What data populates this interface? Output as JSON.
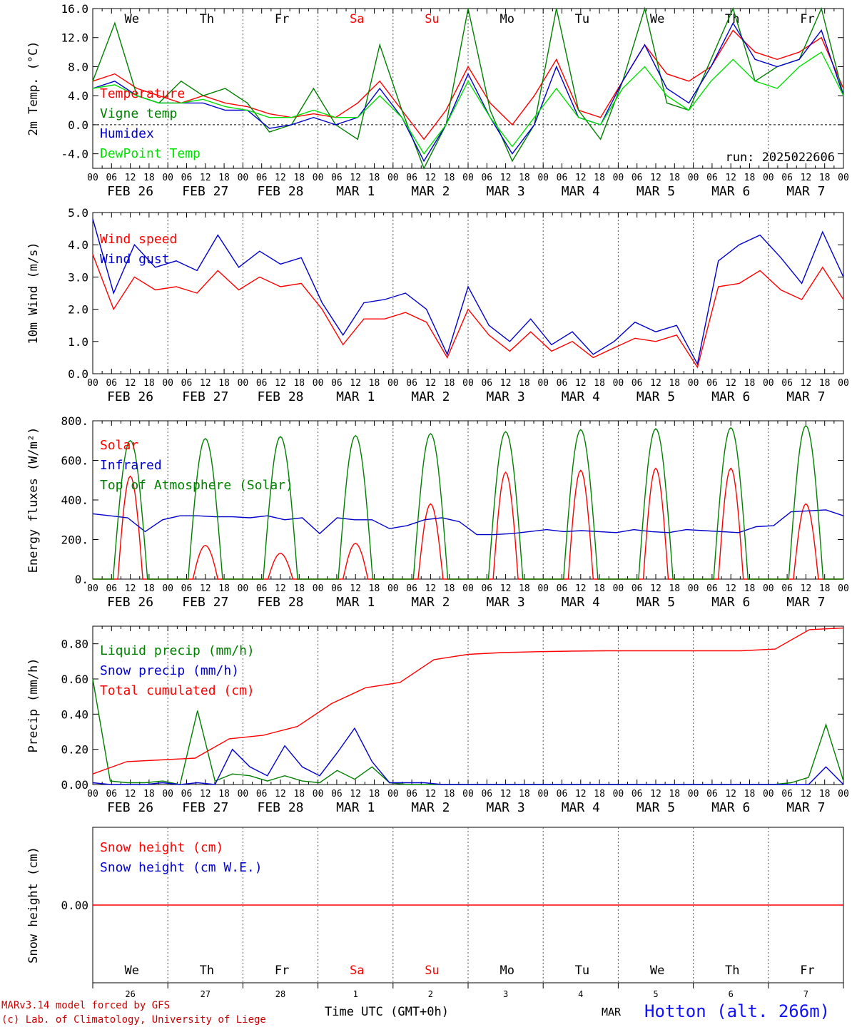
{
  "run_label": "run: 2025022606",
  "footer": {
    "model": "MARv3.14 model forced by GFS",
    "lab": "(c) Lab. of Climatology, University of Liege",
    "xlabel": "Time UTC (GMT+0h)",
    "month": "MAR",
    "station": "Hotton (alt. 266m)"
  },
  "days": [
    "We",
    "Th",
    "Fr",
    "Sa",
    "Su",
    "Mo",
    "Tu",
    "We",
    "Th",
    "Fr"
  ],
  "dates": [
    "FEB 26",
    "FEB 27",
    "FEB 28",
    "MAR  1",
    "MAR  2",
    "MAR  3",
    "MAR  4",
    "MAR  5",
    "MAR  6",
    "MAR  7"
  ],
  "day_nums": [
    "26",
    "27",
    "28",
    "1",
    "2",
    "3",
    "4",
    "5",
    "6",
    "7"
  ],
  "hour_labels": [
    "00",
    "06",
    "12",
    "18"
  ],
  "colors": {
    "weekend": "#ff0000",
    "red": "#ff0000",
    "green": "#008000",
    "blue": "#0000cc",
    "lightgreen": "#00e000"
  },
  "chart_data": [
    {
      "type": "line",
      "ylabel": "2m Temp. (°C)",
      "ylim": [
        -6,
        16
      ],
      "yticks": [
        "-4.0",
        "0.0",
        "4.0",
        "8.0",
        "12.0",
        "16.0"
      ],
      "ytick_values": [
        -4,
        0,
        4,
        8,
        12,
        16
      ],
      "zero_line": true,
      "x_hours_step": 12,
      "series": [
        {
          "name": "Temperature",
          "color": "#ff0000",
          "values": [
            6,
            7,
            5,
            4,
            3,
            4,
            3,
            2.5,
            1.5,
            1,
            1.5,
            1,
            3,
            6,
            2,
            -2,
            2,
            8,
            3,
            0,
            4,
            9,
            2,
            1,
            6,
            11,
            7,
            6,
            8,
            13,
            10,
            9,
            10,
            12,
            5
          ]
        },
        {
          "name": "Vigne temp",
          "color": "#008000",
          "values": [
            6,
            14,
            4,
            3,
            6,
            4,
            5,
            3,
            -1,
            0,
            5,
            0,
            -2,
            11,
            2,
            -6,
            0,
            16,
            2,
            -5,
            0,
            16,
            2,
            -2,
            6,
            16,
            3,
            2,
            9,
            18,
            6,
            8,
            9,
            16,
            4
          ]
        },
        {
          "name": "Humidex",
          "color": "#0000cc",
          "values": [
            5,
            6,
            4,
            3,
            3,
            3,
            2,
            2,
            -0.5,
            0,
            1,
            0,
            1,
            5,
            1,
            -5,
            0,
            7,
            1,
            -4,
            0,
            8,
            1,
            0,
            6,
            11,
            5,
            3,
            8,
            14,
            9,
            8,
            9,
            13,
            4
          ]
        },
        {
          "name": "DewPoint Temp",
          "color": "#00e000",
          "values": [
            5,
            5.5,
            4,
            3,
            3,
            3.5,
            2.5,
            2,
            1,
            1,
            2,
            1,
            1,
            4,
            1,
            -4,
            0,
            6,
            1,
            -3,
            1,
            5,
            1,
            0,
            5,
            8,
            4,
            2,
            6,
            9,
            6,
            5,
            8,
            10,
            4
          ]
        }
      ]
    },
    {
      "type": "line",
      "ylabel": "10m Wind (m/s)",
      "ylim": [
        0,
        5
      ],
      "yticks": [
        "0.0",
        "1.0",
        "2.0",
        "3.0",
        "4.0",
        "5.0"
      ],
      "ytick_values": [
        0,
        1,
        2,
        3,
        4,
        5
      ],
      "x_hours_step": 12,
      "series": [
        {
          "name": "Wind speed",
          "color": "#ff0000",
          "values": [
            3.7,
            2.0,
            3.0,
            2.6,
            2.7,
            2.5,
            3.2,
            2.6,
            3.0,
            2.7,
            2.8,
            2.0,
            0.9,
            1.7,
            1.7,
            1.9,
            1.6,
            0.5,
            2.0,
            1.2,
            0.7,
            1.3,
            0.7,
            1.0,
            0.5,
            0.8,
            1.1,
            1.0,
            1.2,
            0.2,
            2.7,
            2.8,
            3.2,
            2.6,
            2.3,
            3.3,
            2.3
          ]
        },
        {
          "name": "Wind gust",
          "color": "#0000cc",
          "values": [
            4.8,
            2.5,
            4.0,
            3.3,
            3.5,
            3.2,
            4.3,
            3.3,
            3.8,
            3.4,
            3.6,
            2.2,
            1.2,
            2.2,
            2.3,
            2.5,
            2.0,
            0.6,
            2.7,
            1.5,
            1.0,
            1.7,
            0.9,
            1.3,
            0.6,
            1.0,
            1.6,
            1.3,
            1.5,
            0.3,
            3.5,
            4.0,
            4.3,
            3.6,
            2.8,
            4.4,
            3.0
          ]
        }
      ]
    },
    {
      "type": "line",
      "ylabel": "Energy fluxes (W/m²)",
      "ylim": [
        0,
        800
      ],
      "yticks": [
        "0.",
        "200.",
        "400.",
        "600.",
        "800."
      ],
      "ytick_values": [
        0,
        200,
        400,
        600,
        800
      ],
      "x_hours_step": 6,
      "series": [
        {
          "name": "Solar",
          "color": "#ff0000",
          "peaks": [
            520,
            170,
            130,
            180,
            380,
            540,
            550,
            560,
            560,
            380
          ]
        },
        {
          "name": "Infrared",
          "color": "#0000cc",
          "values": [
            330,
            320,
            310,
            240,
            300,
            320,
            320,
            315,
            315,
            310,
            320,
            300,
            310,
            230,
            310,
            300,
            300,
            255,
            270,
            300,
            310,
            290,
            225,
            225,
            230,
            240,
            250,
            240,
            245,
            240,
            235,
            250,
            240,
            235,
            250,
            245,
            240,
            235,
            265,
            270,
            340,
            345,
            350,
            320
          ]
        },
        {
          "name": "Top of Atmosphere (Solar)",
          "color": "#008000",
          "peaks": [
            700,
            710,
            720,
            725,
            735,
            745,
            755,
            760,
            765,
            775
          ]
        }
      ]
    },
    {
      "type": "line",
      "ylabel": "Precip (mm/h)",
      "ylim": [
        0,
        0.9
      ],
      "yticks": [
        "0.00",
        "0.20",
        "0.40",
        "0.60",
        "0.80"
      ],
      "ytick_values": [
        0,
        0.2,
        0.4,
        0.6,
        0.8
      ],
      "x_hours_step": 6,
      "series": [
        {
          "name": "Liquid precip (mm/h)",
          "color": "#008000",
          "values": [
            0.6,
            0.02,
            0.01,
            0.01,
            0.02,
            0.0,
            0.42,
            0.02,
            0.06,
            0.05,
            0.02,
            0.05,
            0.02,
            0.01,
            0.08,
            0.03,
            0.1,
            0.01,
            0,
            0,
            0,
            0,
            0,
            0,
            0,
            0,
            0,
            0,
            0,
            0,
            0,
            0,
            0,
            0,
            0,
            0,
            0,
            0,
            0,
            0,
            0.01,
            0.04,
            0.34,
            0.02
          ]
        },
        {
          "name": "Snow precip (mm/h)",
          "color": "#0000cc",
          "values": [
            0.01,
            0.0,
            0.0,
            0.0,
            0.01,
            0.0,
            0.01,
            0.0,
            0.2,
            0.1,
            0.05,
            0.22,
            0.1,
            0.05,
            0.18,
            0.32,
            0.13,
            0.01,
            0.01,
            0.01,
            0,
            0,
            0,
            0,
            0,
            0,
            0,
            0,
            0,
            0,
            0,
            0,
            0,
            0,
            0,
            0,
            0,
            0,
            0,
            0,
            0,
            0,
            0.1,
            0.0
          ]
        },
        {
          "name": "Total cumulated (cm)",
          "color": "#ff0000",
          "values": [
            0.06,
            0.13,
            0.14,
            0.15,
            0.26,
            0.28,
            0.33,
            0.46,
            0.55,
            0.58,
            0.71,
            0.74,
            0.75,
            0.755,
            0.758,
            0.76,
            0.76,
            0.76,
            0.76,
            0.76,
            0.77,
            0.88,
            0.89
          ]
        }
      ]
    },
    {
      "type": "line",
      "ylabel": "Snow height (cm)",
      "ylim": [
        -1,
        1
      ],
      "yticks": [
        "0.00"
      ],
      "ytick_values": [
        0
      ],
      "series": [
        {
          "name": "Snow height (cm)",
          "color": "#ff0000",
          "values": [
            0,
            0
          ]
        },
        {
          "name": "Snow height (cm W.E.)",
          "color": "#0000cc",
          "values": [
            0,
            0
          ]
        }
      ]
    }
  ]
}
